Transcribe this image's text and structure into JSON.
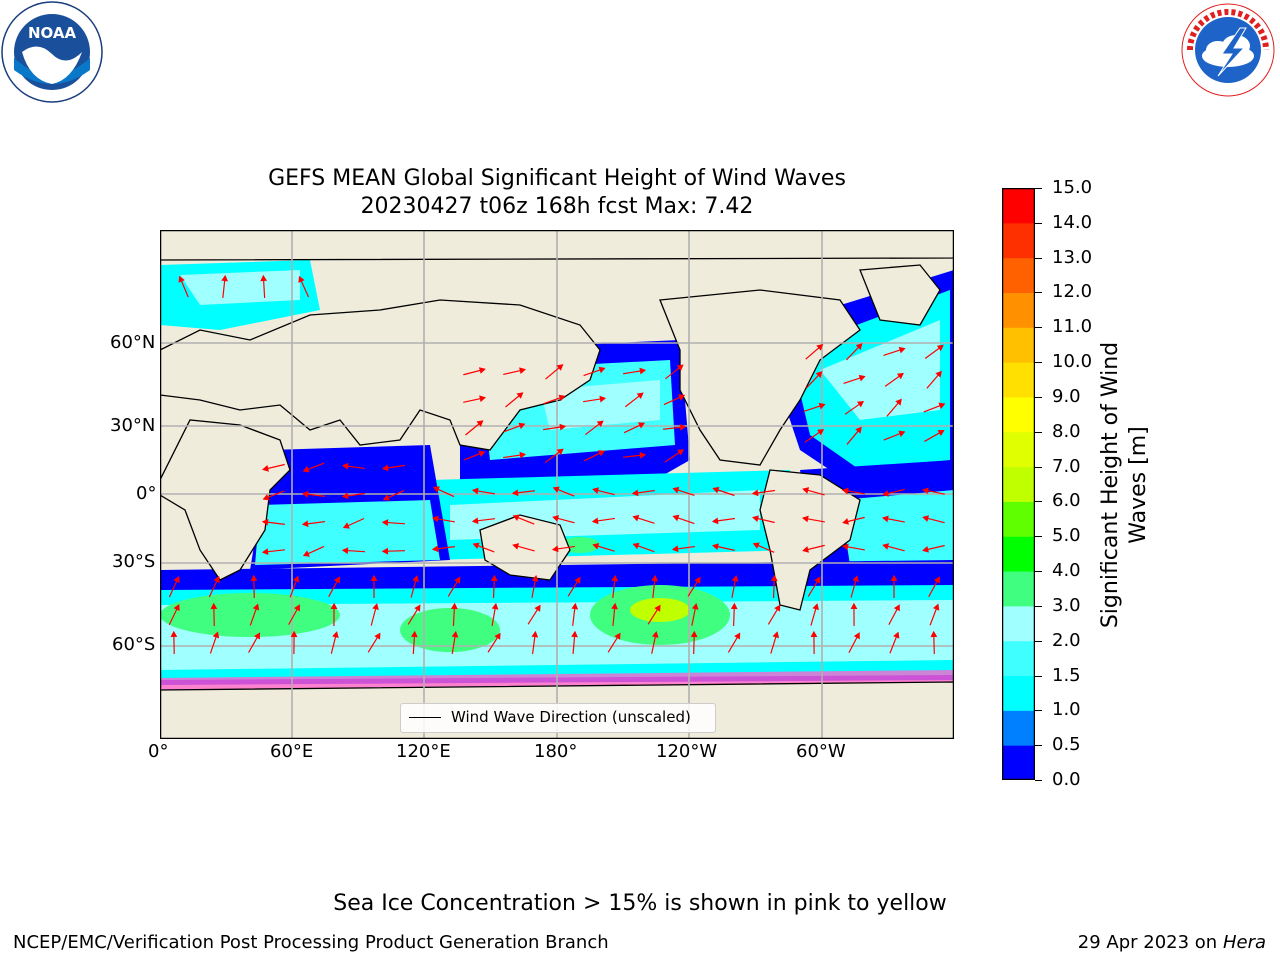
{
  "logos": {
    "noaa": {
      "text": "NOAA",
      "ring_text": "NATIONAL OCEANIC AND ATMOSPHERIC ADMINISTRATION · U.S. DEPARTMENT OF COMMERCE"
    },
    "nws": {
      "ring_text": "NATIONAL WEATHER SERVICE"
    }
  },
  "title": {
    "line1": "GEFS MEAN Global Significant Height of Wind Waves",
    "line2": "20230427 t06z 168h fcst   Max: 7.42"
  },
  "map": {
    "lat_labels": [
      "60°N",
      "30°N",
      "0°",
      "30°S",
      "60°S"
    ],
    "lon_labels": [
      "0°",
      "60°E",
      "120°E",
      "180°",
      "120°W",
      "60°W"
    ],
    "legend": "Wind Wave Direction (unscaled)",
    "colors": {
      "land": "#efecdc",
      "grid": "#b0b0b0",
      "arrow": "#ff0000"
    }
  },
  "colorbar": {
    "label": "Significant Height of Wind Waves [m]",
    "ticks": [
      "15.0",
      "14.0",
      "13.0",
      "12.0",
      "11.0",
      "10.0",
      "9.0",
      "8.0",
      "7.0",
      "6.0",
      "5.0",
      "4.0",
      "3.0",
      "2.0",
      "1.5",
      "1.0",
      "0.5",
      "0.0"
    ],
    "colors": [
      "#0000ff",
      "#0080ff",
      "#00ffff",
      "#40ffff",
      "#a0ffff",
      "#40ff80",
      "#00ff00",
      "#60ff00",
      "#c0ff00",
      "#e0ff00",
      "#ffff00",
      "#ffe000",
      "#ffc000",
      "#ff9000",
      "#ff6000",
      "#ff3000",
      "#ff0000"
    ]
  },
  "footer": {
    "note": "Sea Ice Concentration > 15% is shown in pink to yellow",
    "left": "NCEP/EMC/Verification Post Processing Product Generation Branch",
    "right_date": "29 Apr 2023 on ",
    "right_host": "Hera"
  }
}
